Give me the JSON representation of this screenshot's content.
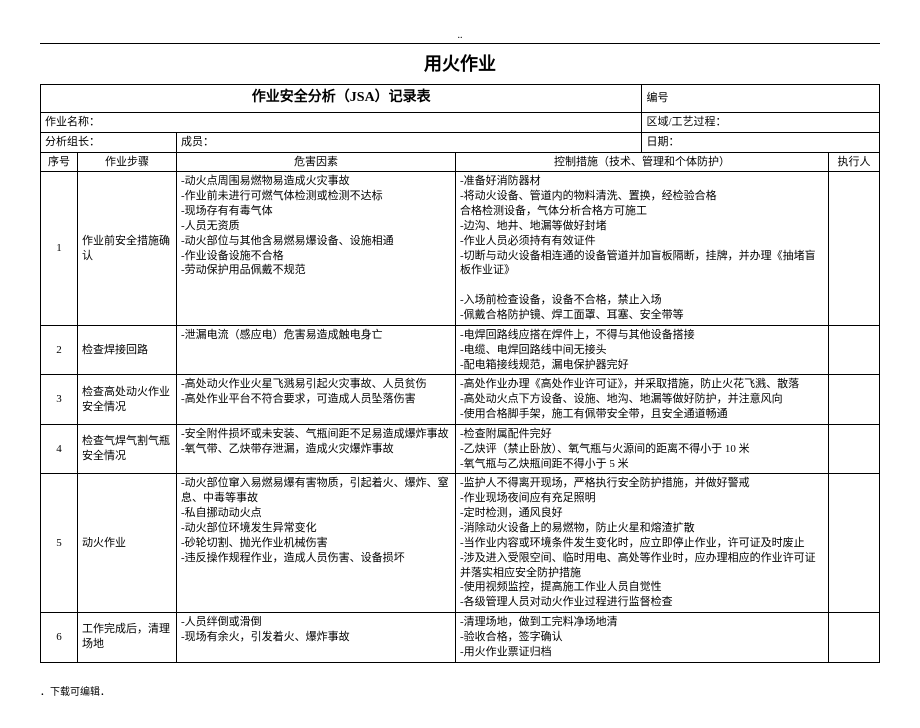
{
  "header": {
    "dots": "..",
    "title": "用火作业",
    "subtitle": "作业安全分析（JSA）记录表",
    "code_label": "编号"
  },
  "meta": {
    "job_name_label": "作业名称：",
    "area_label": "区域/工艺过程：",
    "leader_label": "分析组长：",
    "member_label": "成员：",
    "date_label": "日期："
  },
  "columns": {
    "seq": "序号",
    "step": "作业步骤",
    "hazard": "危害因素",
    "control": "控制措施（技术、管理和个体防护）",
    "executor": "执行人"
  },
  "rows": [
    {
      "seq": "1",
      "step": "作业前安全措施确认",
      "hazard": "-动火点周围易燃物易造成火灾事故\n-作业前未进行可燃气体检测或检测不达标\n-现场存有有毒气体\n-人员无资质\n-动火部位与其他含易燃易爆设备、设施相通\n-作业设备设施不合格\n-劳动保护用品佩戴不规范",
      "control": "-准备好消防器材\n-将动火设备、管道内的物料清洗、置换，经检验合格\n合格检测设备，气体分析合格方可施工\n-边沟、地井、地漏等做好封堵\n-作业人员必须持有有效证件\n-切断与动火设备相连通的设备管道并加盲板隔断，挂牌，并办理《抽堵盲板作业证》\n\n-入场前检查设备，设备不合格，禁止入场\n-佩戴合格防护镜、焊工面罩、耳塞、安全带等"
    },
    {
      "seq": "2",
      "step": "检查焊接回路",
      "hazard": "-泄漏电流（感应电）危害易造成触电身亡",
      "control": "-电焊回路线应搭在焊件上，不得与其他设备搭接\n-电缆、电焊回路线中间无接头\n-配电箱接线规范，漏电保护器完好"
    },
    {
      "seq": "3",
      "step": "检查高处动火作业安全情况",
      "hazard": "-高处动火作业火星飞溅易引起火灾事故、人员贫伤\n-高处作业平台不符合要求，可造成人员坠落伤害",
      "control": "-高处作业办理《高处作业许可证》，并采取措施，防止火花飞溅、散落\n-高处动火点下方设备、设施、地沟、地漏等做好防护，并注意风向\n-使用合格脚手架，施工有佩带安全带，且安全通道畅通"
    },
    {
      "seq": "4",
      "step": "检查气焊气割气瓶安全情况",
      "hazard": "-安全附件损坏或未安装、气瓶间距不足易造成爆炸事故\n-氧气带、乙炔带存泄漏，造成火灾爆炸事故",
      "control": "-检查附属配件完好\n-乙炔评（禁止卧放）、氧气瓶与火源间的距离不得小于 10 米\n-氧气瓶与乙炔瓶间距不得小于 5 米"
    },
    {
      "seq": "5",
      "step": "动火作业",
      "hazard": "-动火部位窜入易燃易爆有害物质，引起着火、爆炸、窒息、中毒等事故\n-私自挪动动火点\n-动火部位环境发生异常变化\n-砂轮切割、抛光作业机械伤害\n-违反操作规程作业，造成人员伤害、设备损坏",
      "control": "-监护人不得离开现场，严格执行安全防护措施，并做好警戒\n-作业现场夜间应有充足照明\n-定时检测，通风良好\n-消除动火设备上的易燃物，防止火星和熔渣扩散\n-当作业内容或环境条件发生变化时，应立即停止作业，许可证及时废止\n-涉及进入受限空间、临时用电、高处等作业时，应办理相应的作业许可证并落实相应安全防护措施\n-使用视频监控，提高施工作业人员自觉性\n-各级管理人员对动火作业过程进行监督检查"
    },
    {
      "seq": "6",
      "step": "工作完成后，清理场地",
      "hazard": "-人员绊倒或滑倒\n-现场有余火，引发着火、爆炸事故",
      "control": "-清理场地，做到工完料净场地清\n-验收合格，签字确认\n-用火作业票证归档"
    }
  ],
  "footer": "．下载可编辑．"
}
